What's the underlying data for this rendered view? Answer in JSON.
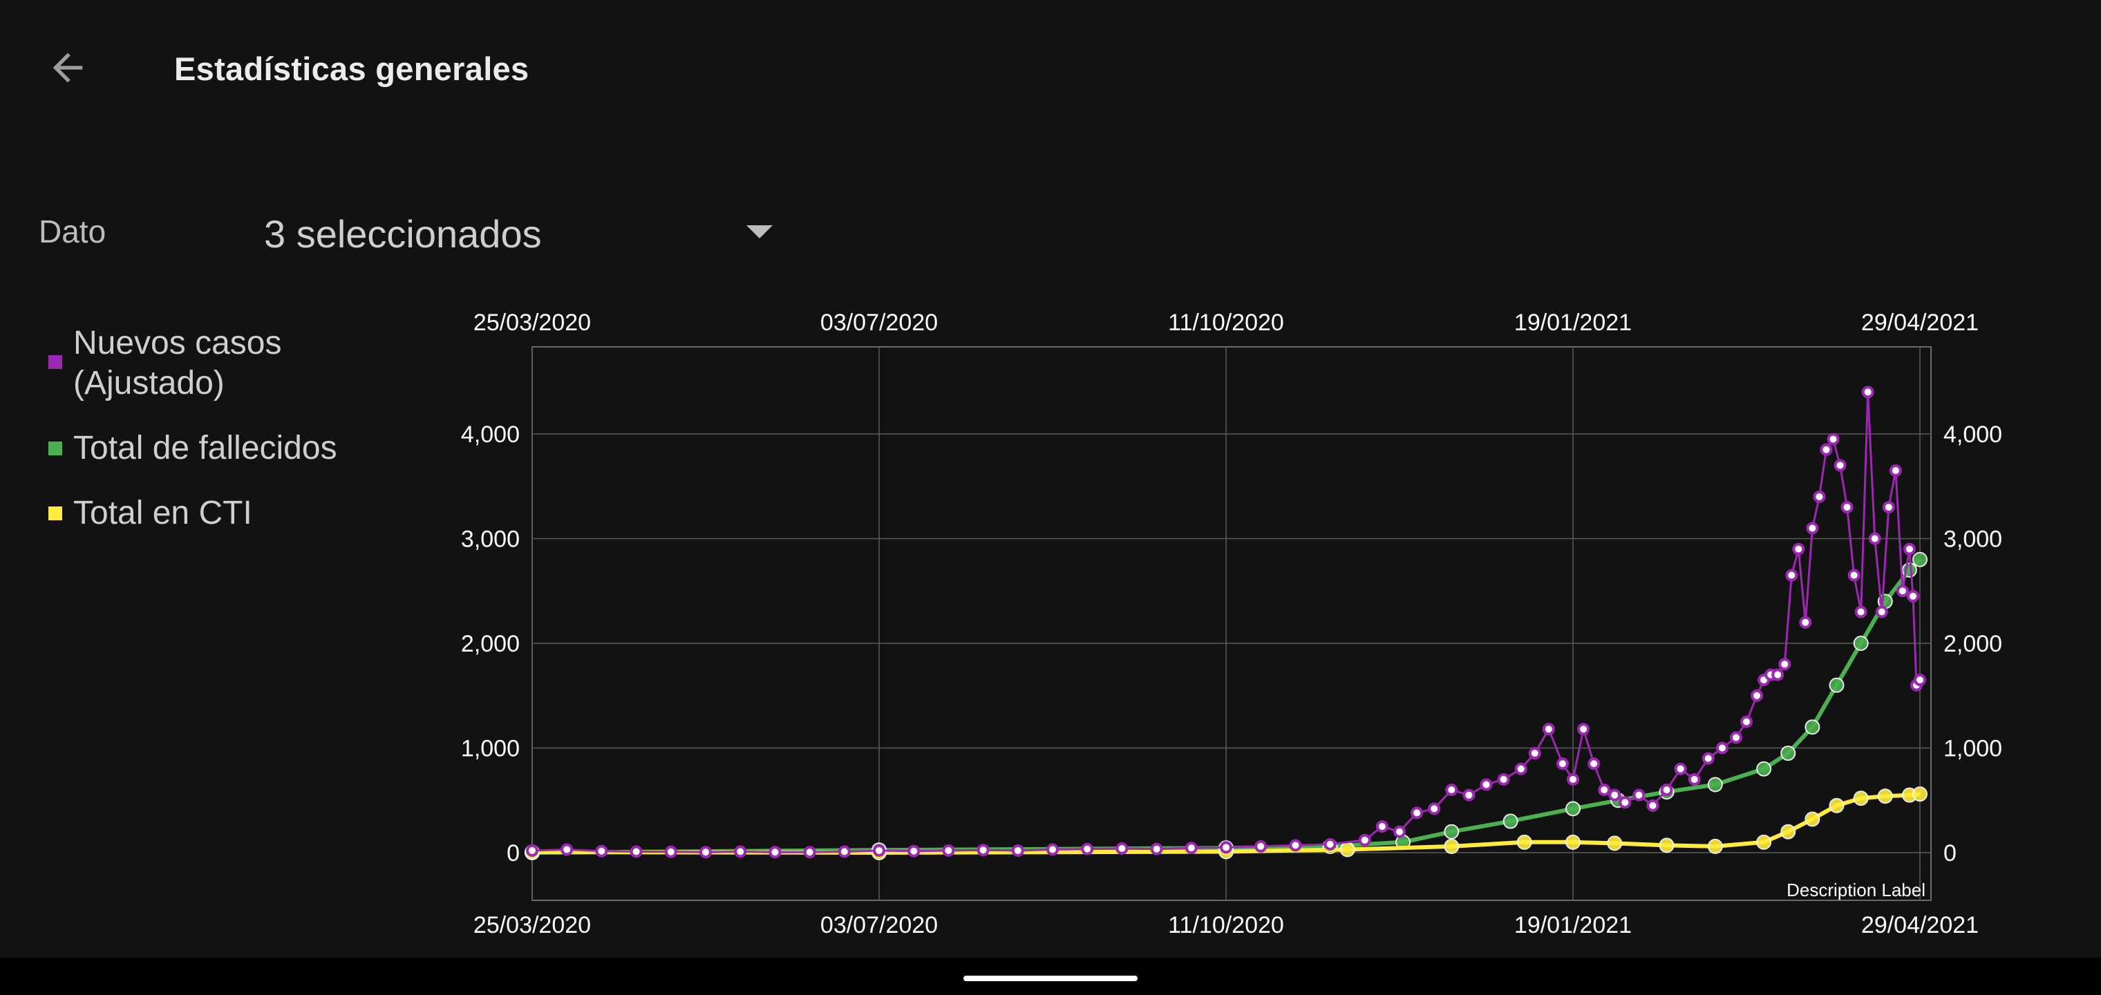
{
  "app": {
    "title": "Estadísticas generales"
  },
  "toolbar": {
    "back_icon": "arrow-back-icon"
  },
  "filter": {
    "label": "Dato",
    "value": "3 seleccionados",
    "arrow_icon": "dropdown-arrow-icon"
  },
  "legend": {
    "items": [
      {
        "label": "Nuevos casos (Ajustado)",
        "color": "#9c27b0"
      },
      {
        "label": "Total de fallecidos",
        "color": "#4caf50"
      },
      {
        "label": "Total en CTI",
        "color": "#ffeb3b"
      }
    ]
  },
  "chart_data": {
    "type": "line",
    "x_start": "25/03/2020",
    "x_end": "29/04/2021",
    "x_tick_labels": [
      "25/03/2020",
      "03/07/2020",
      "11/10/2020",
      "19/01/2021",
      "29/04/2021"
    ],
    "y_tick_labels": [
      "0",
      "1,000",
      "2,000",
      "3,000",
      "4,000"
    ],
    "ylim": [
      -450,
      4800
    ],
    "grid": true,
    "legend_position": "left",
    "description_label": "Description Label",
    "series": [
      {
        "name": "Nuevos casos (Ajustado)",
        "color": "#9c27b0",
        "x": [
          "25/03/2020",
          "04/04/2020",
          "14/04/2020",
          "24/04/2020",
          "04/05/2020",
          "14/05/2020",
          "24/05/2020",
          "03/06/2020",
          "13/06/2020",
          "23/06/2020",
          "03/07/2020",
          "13/07/2020",
          "23/07/2020",
          "02/08/2020",
          "12/08/2020",
          "22/08/2020",
          "01/09/2020",
          "11/09/2020",
          "21/09/2020",
          "01/10/2020",
          "11/10/2020",
          "21/10/2020",
          "31/10/2020",
          "10/11/2020",
          "20/11/2020",
          "25/11/2020",
          "30/11/2020",
          "05/12/2020",
          "10/12/2020",
          "15/12/2020",
          "20/12/2020",
          "25/12/2020",
          "30/12/2020",
          "04/01/2021",
          "08/01/2021",
          "12/01/2021",
          "16/01/2021",
          "19/01/2021",
          "22/01/2021",
          "25/01/2021",
          "28/01/2021",
          "31/01/2021",
          "03/02/2021",
          "07/02/2021",
          "11/02/2021",
          "15/02/2021",
          "19/02/2021",
          "23/02/2021",
          "27/02/2021",
          "03/03/2021",
          "07/03/2021",
          "10/03/2021",
          "13/03/2021",
          "15/03/2021",
          "17/03/2021",
          "19/03/2021",
          "21/03/2021",
          "23/03/2021",
          "25/03/2021",
          "27/03/2021",
          "29/03/2021",
          "31/03/2021",
          "02/04/2021",
          "04/04/2021",
          "06/04/2021",
          "08/04/2021",
          "10/04/2021",
          "12/04/2021",
          "14/04/2021",
          "16/04/2021",
          "18/04/2021",
          "20/04/2021",
          "22/04/2021",
          "24/04/2021",
          "26/04/2021",
          "27/04/2021",
          "28/04/2021",
          "29/04/2021"
        ],
        "values": [
          20,
          30,
          15,
          10,
          8,
          5,
          10,
          5,
          5,
          10,
          20,
          15,
          20,
          25,
          20,
          30,
          35,
          40,
          35,
          45,
          50,
          60,
          70,
          80,
          120,
          250,
          200,
          380,
          420,
          600,
          550,
          650,
          700,
          800,
          950,
          1180,
          850,
          700,
          1180,
          850,
          600,
          550,
          480,
          550,
          450,
          600,
          800,
          700,
          900,
          1000,
          1100,
          1250,
          1500,
          1650,
          1700,
          1700,
          1800,
          2650,
          2900,
          2200,
          3100,
          3400,
          3850,
          3950,
          3700,
          3300,
          2650,
          2300,
          4400,
          3000,
          2300,
          3300,
          3650,
          2500,
          2900,
          2450,
          1600,
          1650
        ]
      },
      {
        "name": "Total de fallecidos",
        "color": "#4caf50",
        "x": [
          "25/03/2020",
          "03/07/2020",
          "11/10/2020",
          "10/11/2020",
          "01/12/2020",
          "15/12/2020",
          "01/01/2021",
          "19/01/2021",
          "01/02/2021",
          "15/02/2021",
          "01/03/2021",
          "15/03/2021",
          "22/03/2021",
          "29/03/2021",
          "05/04/2021",
          "12/04/2021",
          "19/04/2021",
          "26/04/2021",
          "29/04/2021"
        ],
        "values": [
          0,
          25,
          45,
          60,
          100,
          200,
          300,
          420,
          500,
          580,
          650,
          800,
          950,
          1200,
          1600,
          2000,
          2400,
          2700,
          2800
        ]
      },
      {
        "name": "Total en CTI",
        "color": "#ffeb3b",
        "x": [
          "25/03/2020",
          "03/07/2020",
          "11/10/2020",
          "15/11/2020",
          "15/12/2020",
          "05/01/2021",
          "19/01/2021",
          "31/01/2021",
          "15/02/2021",
          "01/03/2021",
          "15/03/2021",
          "22/03/2021",
          "29/03/2021",
          "05/04/2021",
          "12/04/2021",
          "19/04/2021",
          "26/04/2021",
          "29/04/2021"
        ],
        "values": [
          5,
          0,
          10,
          30,
          60,
          100,
          100,
          90,
          70,
          60,
          100,
          200,
          320,
          450,
          520,
          540,
          550,
          560
        ]
      }
    ]
  },
  "nav": {
    "home_indicator": "home-indicator"
  }
}
